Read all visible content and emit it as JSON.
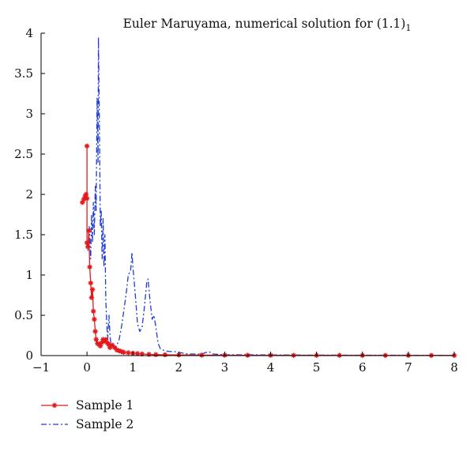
{
  "chart_data": {
    "type": "line",
    "title": "Euler Maruyama, numerical solution for (1.1)",
    "title_subscript": "1",
    "xlabel": "",
    "ylabel": "",
    "xlim": [
      -1,
      8
    ],
    "ylim": [
      0,
      4
    ],
    "x_ticks": [
      "−1",
      "0",
      "1",
      "2",
      "3",
      "4",
      "5",
      "6",
      "7",
      "8"
    ],
    "y_ticks": [
      "0",
      "0.5",
      "1",
      "1.5",
      "2",
      "2.5",
      "3",
      "3.5",
      "4"
    ],
    "grid": false,
    "legend_placement": "bottom-left, outside plot",
    "series": [
      {
        "name": "Sample 1",
        "color": "#e31a1c",
        "line_style": "solid",
        "marker": "asterisk",
        "points": [
          [
            -0.1,
            1.9
          ],
          [
            -0.07,
            1.94
          ],
          [
            -0.04,
            1.98
          ],
          [
            -0.02,
            2.0
          ],
          [
            0.0,
            1.95
          ],
          [
            0.0,
            2.6
          ],
          [
            0.0,
            1.4
          ],
          [
            0.02,
            1.35
          ],
          [
            0.04,
            1.55
          ],
          [
            0.06,
            1.1
          ],
          [
            0.08,
            0.9
          ],
          [
            0.1,
            0.72
          ],
          [
            0.12,
            0.82
          ],
          [
            0.14,
            0.55
          ],
          [
            0.16,
            0.45
          ],
          [
            0.18,
            0.3
          ],
          [
            0.2,
            0.2
          ],
          [
            0.23,
            0.15
          ],
          [
            0.26,
            0.14
          ],
          [
            0.29,
            0.12
          ],
          [
            0.32,
            0.16
          ],
          [
            0.35,
            0.2
          ],
          [
            0.38,
            0.18
          ],
          [
            0.41,
            0.2
          ],
          [
            0.44,
            0.16
          ],
          [
            0.47,
            0.14
          ],
          [
            0.5,
            0.1
          ],
          [
            0.55,
            0.13
          ],
          [
            0.6,
            0.1
          ],
          [
            0.65,
            0.07
          ],
          [
            0.7,
            0.06
          ],
          [
            0.75,
            0.05
          ],
          [
            0.8,
            0.04
          ],
          [
            0.9,
            0.035
          ],
          [
            1.0,
            0.03
          ],
          [
            1.1,
            0.025
          ],
          [
            1.2,
            0.02
          ],
          [
            1.35,
            0.015
          ],
          [
            1.5,
            0.012
          ],
          [
            1.7,
            0.01
          ],
          [
            2.0,
            0.008
          ],
          [
            2.5,
            0.006
          ],
          [
            3.0,
            0.005
          ],
          [
            3.5,
            0.004
          ],
          [
            4.0,
            0.004
          ],
          [
            4.5,
            0.003
          ],
          [
            5.0,
            0.003
          ],
          [
            5.5,
            0.003
          ],
          [
            6.0,
            0.002
          ],
          [
            6.5,
            0.002
          ],
          [
            7.0,
            0.002
          ],
          [
            7.5,
            0.002
          ],
          [
            8.0,
            0.002
          ]
        ]
      },
      {
        "name": "Sample 2",
        "color": "#1f3bd6",
        "line_style": "dash-dot",
        "marker": "none",
        "points": [
          [
            0.02,
            1.3
          ],
          [
            0.05,
            1.6
          ],
          [
            0.08,
            1.2
          ],
          [
            0.1,
            1.75
          ],
          [
            0.12,
            1.4
          ],
          [
            0.14,
            1.9
          ],
          [
            0.16,
            1.5
          ],
          [
            0.18,
            2.1
          ],
          [
            0.2,
            1.8
          ],
          [
            0.22,
            3.2
          ],
          [
            0.24,
            2.4
          ],
          [
            0.25,
            3.95
          ],
          [
            0.27,
            2.9
          ],
          [
            0.29,
            1.6
          ],
          [
            0.31,
            1.8
          ],
          [
            0.33,
            1.2
          ],
          [
            0.35,
            1.7
          ],
          [
            0.37,
            1.1
          ],
          [
            0.39,
            1.5
          ],
          [
            0.41,
            0.7
          ],
          [
            0.43,
            0.4
          ],
          [
            0.45,
            0.2
          ],
          [
            0.48,
            0.5
          ],
          [
            0.5,
            0.25
          ],
          [
            0.53,
            0.1
          ],
          [
            0.58,
            0.12
          ],
          [
            0.63,
            0.1
          ],
          [
            0.7,
            0.2
          ],
          [
            0.75,
            0.35
          ],
          [
            0.8,
            0.55
          ],
          [
            0.85,
            0.75
          ],
          [
            0.9,
            1.0
          ],
          [
            0.95,
            1.05
          ],
          [
            0.98,
            1.28
          ],
          [
            1.0,
            1.1
          ],
          [
            1.03,
            0.9
          ],
          [
            1.06,
            0.7
          ],
          [
            1.1,
            0.4
          ],
          [
            1.15,
            0.3
          ],
          [
            1.2,
            0.35
          ],
          [
            1.25,
            0.6
          ],
          [
            1.3,
            0.9
          ],
          [
            1.33,
            0.95
          ],
          [
            1.37,
            0.7
          ],
          [
            1.42,
            0.45
          ],
          [
            1.46,
            0.5
          ],
          [
            1.5,
            0.35
          ],
          [
            1.55,
            0.15
          ],
          [
            1.6,
            0.08
          ],
          [
            1.7,
            0.06
          ],
          [
            1.8,
            0.05
          ],
          [
            1.9,
            0.05
          ],
          [
            2.0,
            0.04
          ],
          [
            2.2,
            0.02
          ],
          [
            2.5,
            0.02
          ],
          [
            2.65,
            0.05
          ],
          [
            2.75,
            0.02
          ],
          [
            3.0,
            0.01
          ],
          [
            3.5,
            0.01
          ],
          [
            4.0,
            0.008
          ],
          [
            5.0,
            0.006
          ],
          [
            6.0,
            0.005
          ],
          [
            7.0,
            0.004
          ],
          [
            8.0,
            0.004
          ]
        ]
      }
    ]
  }
}
